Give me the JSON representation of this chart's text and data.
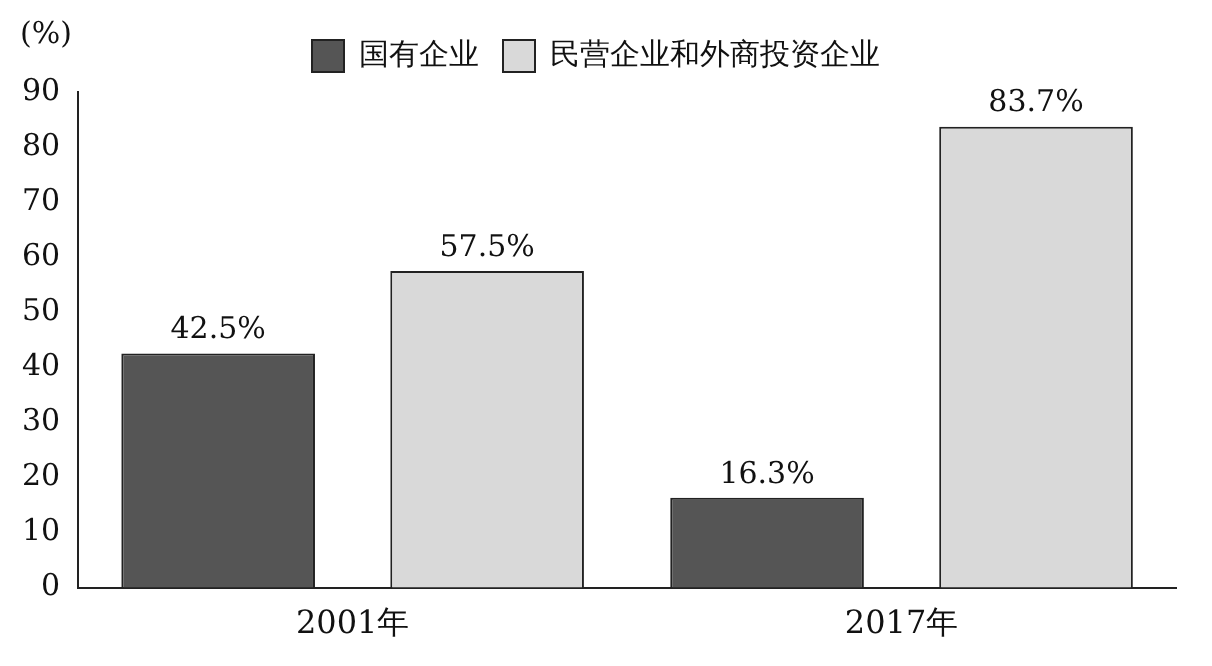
{
  "chart_data": {
    "type": "bar",
    "ylabel": "(%)",
    "categories": [
      "2001年",
      "2017年"
    ],
    "series": [
      {
        "name": "国有企业",
        "color": "#555555",
        "values": [
          42.5,
          16.3
        ],
        "value_labels": [
          "42.5%",
          "16.3%"
        ]
      },
      {
        "name": "民营企业和外商投资企业",
        "color": "#d9d9d9",
        "values": [
          57.5,
          83.7
        ],
        "value_labels": [
          "57.5%",
          "83.7%"
        ]
      }
    ],
    "ylim": [
      0,
      90
    ],
    "yticks": [
      0,
      10,
      20,
      30,
      40,
      50,
      60,
      70,
      80,
      90
    ],
    "grid": false,
    "legend": "top"
  }
}
